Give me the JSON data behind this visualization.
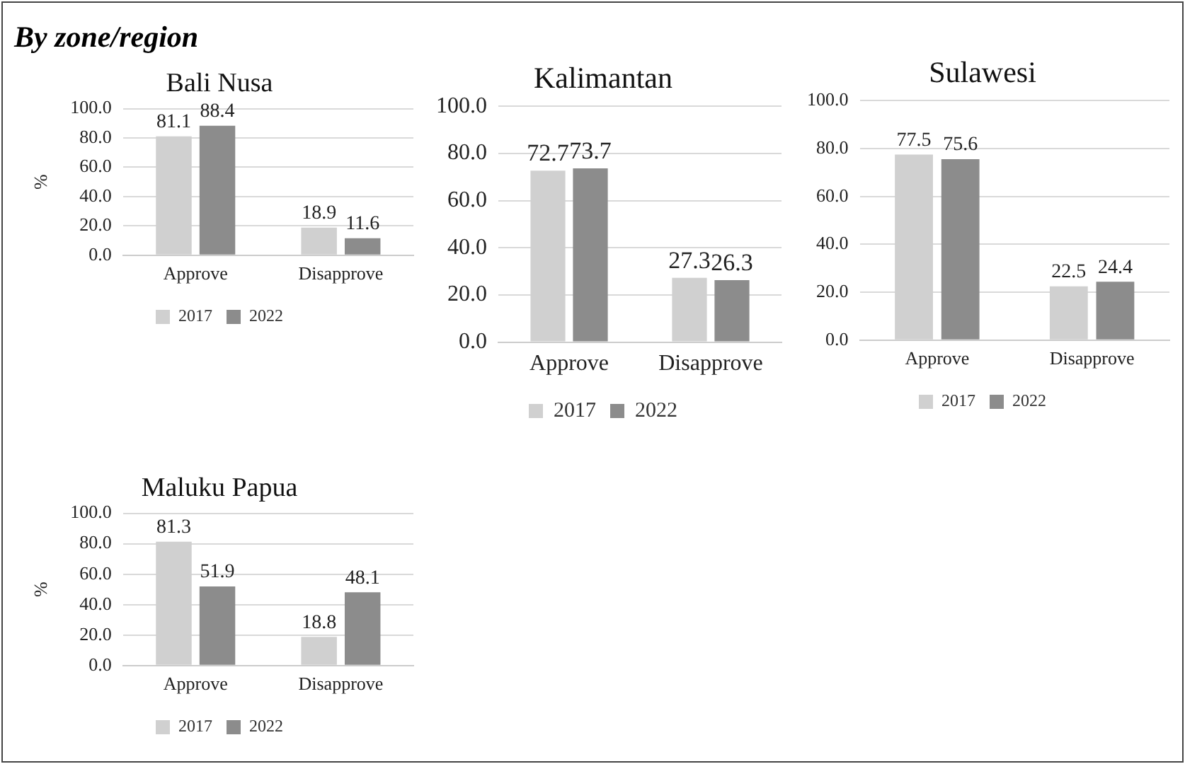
{
  "chart_data": [
    {
      "type": "bar",
      "title": "Bali Nusa",
      "ylabel": "%",
      "annotations": [
        "By zone/region"
      ],
      "categories": [
        "Approve",
        "Disapprove"
      ],
      "series": [
        {
          "name": "2017",
          "color": "#d0d0d0",
          "values": [
            81.1,
            18.9
          ]
        },
        {
          "name": "2022",
          "color": "#8c8c8c",
          "values": [
            88.4,
            11.6
          ]
        }
      ],
      "ylim": [
        0,
        100
      ],
      "yticks": [
        {
          "value": 0,
          "label": "0.0"
        },
        {
          "value": 20,
          "label": "20.0"
        },
        {
          "value": 40,
          "label": "40.0"
        },
        {
          "value": 60,
          "label": "60.0"
        },
        {
          "value": 80,
          "label": "80.0"
        },
        {
          "value": 100,
          "label": "100.0"
        }
      ],
      "grid": "y",
      "legend": "bottom",
      "data_labels": true
    },
    {
      "type": "bar",
      "title": "Kalimantan",
      "categories": [
        "Approve",
        "Disapprove"
      ],
      "series": [
        {
          "name": "2017",
          "color": "#d0d0d0",
          "values": [
            72.7,
            27.3
          ]
        },
        {
          "name": "2022",
          "color": "#8c8c8c",
          "values": [
            73.7,
            26.3
          ]
        }
      ],
      "ylim": [
        0,
        100
      ],
      "yticks": [
        {
          "value": 0,
          "label": "0.0"
        },
        {
          "value": 20,
          "label": "20.0"
        },
        {
          "value": 40,
          "label": "40.0"
        },
        {
          "value": 60,
          "label": "60.0"
        },
        {
          "value": 80,
          "label": "80.0"
        },
        {
          "value": 100,
          "label": "100.0"
        }
      ],
      "grid": "y",
      "legend": "bottom",
      "data_labels": true
    },
    {
      "type": "bar",
      "title": "Sulawesi",
      "categories": [
        "Approve",
        "Disapprove"
      ],
      "series": [
        {
          "name": "2017",
          "color": "#d0d0d0",
          "values": [
            77.5,
            22.5
          ]
        },
        {
          "name": "2022",
          "color": "#8c8c8c",
          "values": [
            75.6,
            24.4
          ]
        }
      ],
      "ylim": [
        0,
        100
      ],
      "yticks": [
        {
          "value": 0,
          "label": "0.0"
        },
        {
          "value": 20,
          "label": "20.0"
        },
        {
          "value": 40,
          "label": "40.0"
        },
        {
          "value": 60,
          "label": "60.0"
        },
        {
          "value": 80,
          "label": "80.0"
        },
        {
          "value": 100,
          "label": "100.0"
        }
      ],
      "grid": "y",
      "legend": "bottom",
      "data_labels": true
    },
    {
      "type": "bar",
      "title": "Maluku Papua",
      "ylabel": "%",
      "categories": [
        "Approve",
        "Disapprove"
      ],
      "series": [
        {
          "name": "2017",
          "color": "#d0d0d0",
          "values": [
            81.3,
            18.8
          ]
        },
        {
          "name": "2022",
          "color": "#8c8c8c",
          "values": [
            51.9,
            48.1
          ]
        }
      ],
      "ylim": [
        0,
        100
      ],
      "yticks": [
        {
          "value": 0,
          "label": "0.0"
        },
        {
          "value": 20,
          "label": "20.0"
        },
        {
          "value": 40,
          "label": "40.0"
        },
        {
          "value": 60,
          "label": "60.0"
        },
        {
          "value": 80,
          "label": "80.0"
        },
        {
          "value": 100,
          "label": "100.0"
        }
      ],
      "grid": "y",
      "legend": "bottom",
      "data_labels": true
    }
  ]
}
